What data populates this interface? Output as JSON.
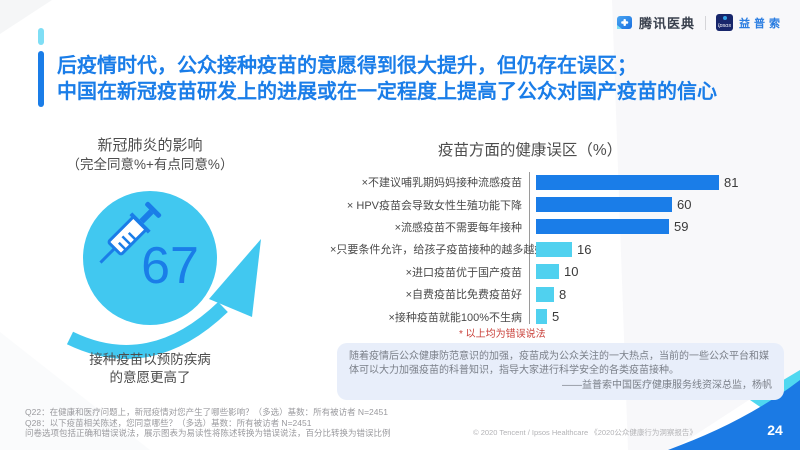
{
  "header": {
    "tencent_logo_text": "腾讯医典",
    "ipsos_logo_word": "Ipsos",
    "ipsos_logo_cn": "益普索"
  },
  "title": {
    "line1": "后疫情时代，公众接种疫苗的意愿得到很大提升，但仍存在误区；",
    "line2": "中国在新冠疫苗研发上的进展或在一定程度上提高了公众对国产疫苗的信心"
  },
  "left_panel": {
    "title": "新冠肺炎的影响",
    "subtitle": "（完全同意%+有点同意%）",
    "big_number": "67",
    "caption_line1": "接种疫苗以预防疾病",
    "caption_line2": "的意愿更高了"
  },
  "chart_data": {
    "type": "bar",
    "orientation": "horizontal",
    "title": "疫苗方面的健康误区（%）",
    "categories": [
      "×不建议哺乳期妈妈接种流感疫苗",
      "× HPV疫苗会导致女性生殖功能下降",
      "×流感疫苗不需要每年接种",
      "×只要条件允许，给孩子疫苗接种的越多越好",
      "×进口疫苗优于国产疫苗",
      "×自费疫苗比免费疫苗好",
      "×接种疫苗就能100%不生病"
    ],
    "values": [
      81,
      60,
      59,
      16,
      10,
      8,
      5
    ],
    "bar_colors": [
      "#1a7de8",
      "#1a7de8",
      "#1a7de8",
      "#50d1ef",
      "#50d1ef",
      "#50d1ef",
      "#50d1ef"
    ],
    "xlim": [
      0,
      100
    ],
    "value_labels_shown": true,
    "footnote_red": "* 以上均为错误说法",
    "legend": "none",
    "grid": "off"
  },
  "quote": {
    "text": "随着疫情后公众健康防范意识的加强，疫苗成为公众关注的一大热点，当前的一些公众平台和媒体可以大力加强疫苗的科普知识，指导大家进行科学安全的各类疫苗接种。",
    "attribution": "——益普索中国医疗健康服务线资深总监，杨帆"
  },
  "footnotes": {
    "line1": "Q22：在健康和医疗问题上，新冠疫情对您产生了哪些影响？（多选）基数：所有被访者 N=2451",
    "line2": "Q28：以下疫苗相关陈述，您同意哪些？（多选）基数：所有被访者 N=2451",
    "line3": "问卷选项包括正确和错误说法，展示图表为易读性将陈述转换为错误说法，百分比转换为错误比例"
  },
  "footer": {
    "copyright": "© 2020 Tencent / Ipsos Healthcare 《2020公众健康行为洞察报告》",
    "page_number": "24"
  },
  "colors": {
    "accent_blue": "#1a7de8",
    "accent_cyan": "#41c8f0",
    "bar_blue": "#1a7de8",
    "bar_cyan": "#50d1ef",
    "note_red": "#c9403a",
    "quote_bg": "#e8eefa"
  }
}
